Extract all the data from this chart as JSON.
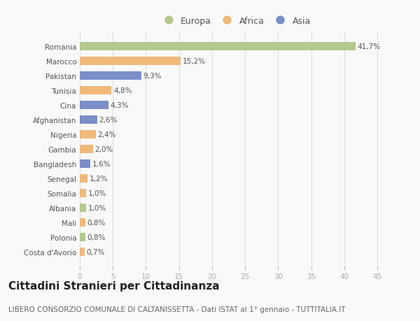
{
  "countries": [
    "Romania",
    "Marocco",
    "Pakistan",
    "Tunisia",
    "Cina",
    "Afghanistan",
    "Nigeria",
    "Gambia",
    "Bangladesh",
    "Senegal",
    "Somalia",
    "Albania",
    "Mali",
    "Polonia",
    "Costa d'Avorio"
  ],
  "values": [
    41.7,
    15.2,
    9.3,
    4.8,
    4.3,
    2.6,
    2.4,
    2.0,
    1.6,
    1.2,
    1.0,
    1.0,
    0.8,
    0.8,
    0.7
  ],
  "labels": [
    "41,7%",
    "15,2%",
    "9,3%",
    "4,8%",
    "4,3%",
    "2,6%",
    "2,4%",
    "2,0%",
    "1,6%",
    "1,2%",
    "1,0%",
    "1,0%",
    "0,8%",
    "0,8%",
    "0,7%"
  ],
  "continents": [
    "Europa",
    "Africa",
    "Asia",
    "Africa",
    "Asia",
    "Asia",
    "Africa",
    "Africa",
    "Asia",
    "Africa",
    "Africa",
    "Europa",
    "Africa",
    "Europa",
    "Africa"
  ],
  "colors": {
    "Europa": "#b5c98e",
    "Africa": "#f0b97a",
    "Asia": "#7b8ec8"
  },
  "legend_order": [
    "Europa",
    "Africa",
    "Asia"
  ],
  "xlim": [
    0,
    47
  ],
  "xticks": [
    0,
    5,
    10,
    15,
    20,
    25,
    30,
    35,
    40,
    45
  ],
  "title": "Cittadini Stranieri per Cittadinanza",
  "subtitle": "LIBERO CONSORZIO COMUNALE DI CALTANISSETTA - Dati ISTAT al 1° gennaio - TUTTITALIA.IT",
  "background_color": "#f9f9f9",
  "bar_height": 0.55,
  "title_fontsize": 11,
  "subtitle_fontsize": 7.5,
  "label_fontsize": 7.5,
  "ytick_fontsize": 7.5,
  "xtick_fontsize": 7.5,
  "legend_fontsize": 9
}
